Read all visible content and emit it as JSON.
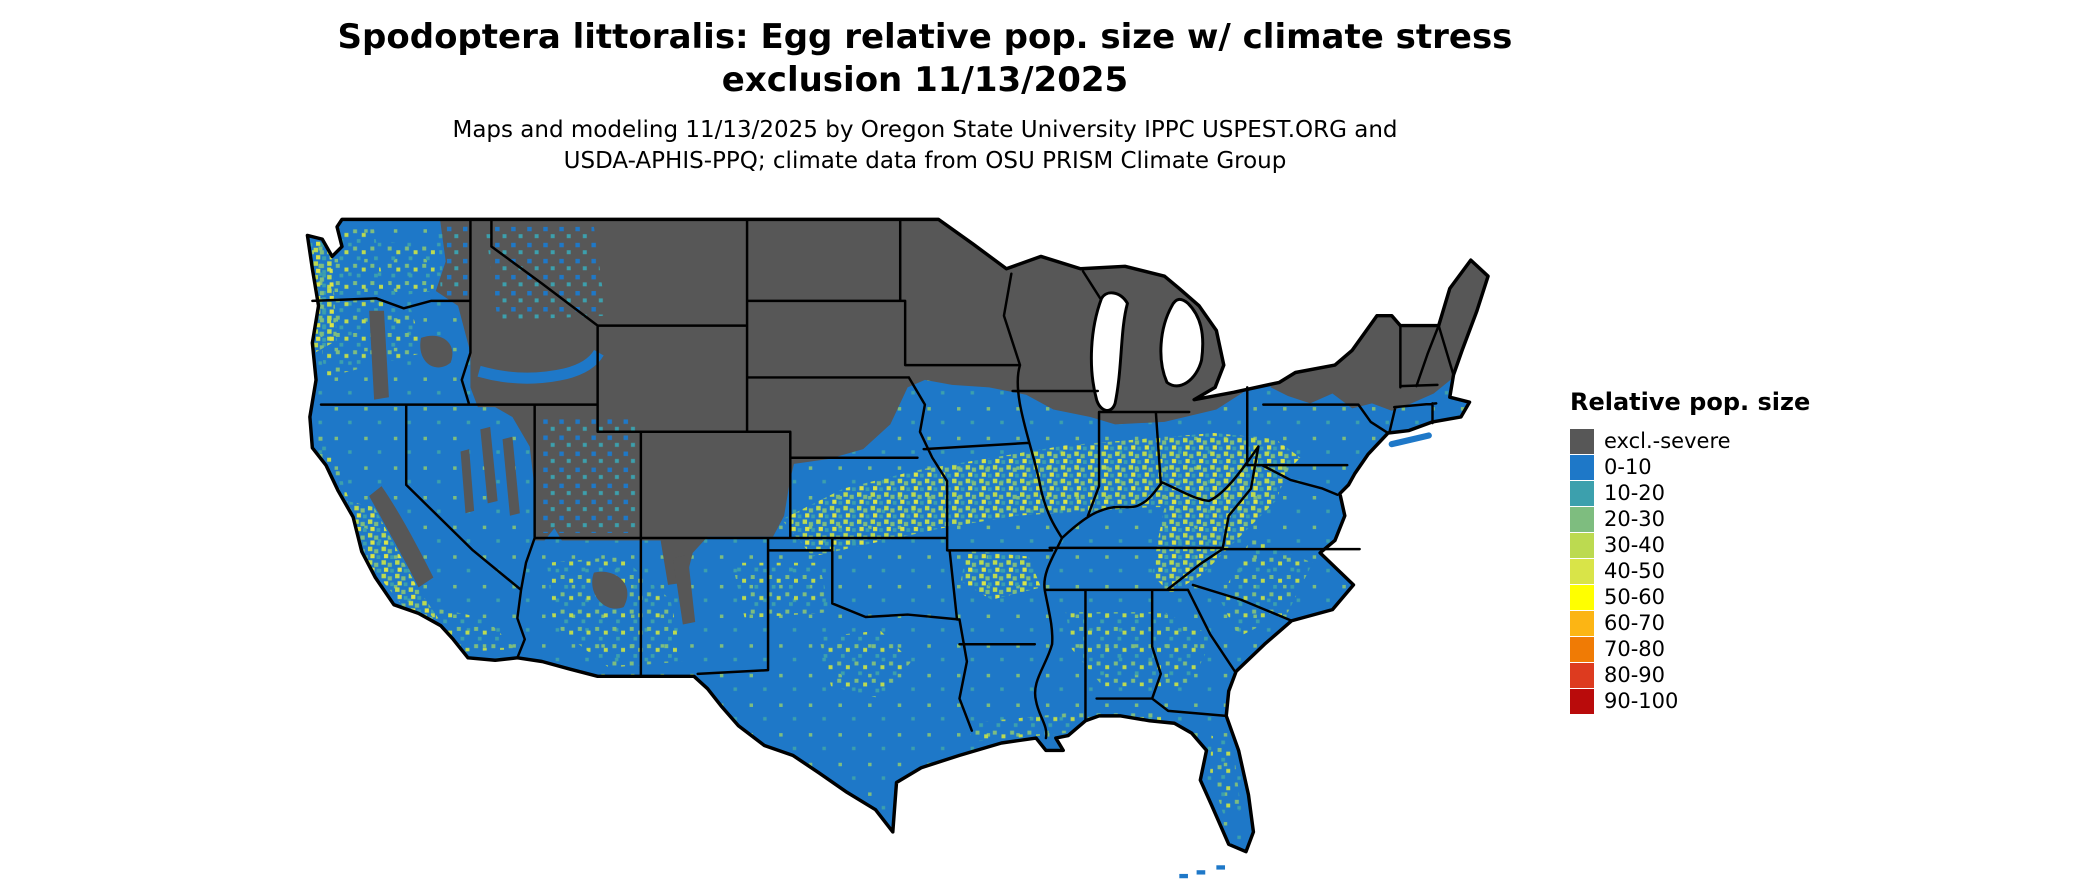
{
  "header": {
    "title_line1": "Spodoptera littoralis: Egg relative pop. size w/ climate stress",
    "title_line2": "exclusion 11/13/2025",
    "subtitle_line1": "Maps and modeling 11/13/2025 by Oregon State University IPPC USPEST.ORG and",
    "subtitle_line2": "USDA-APHIS-PPQ; climate data from OSU PRISM Climate Group"
  },
  "legend": {
    "title": "Relative pop. size",
    "items": [
      {
        "label": "excl.-severe",
        "color": "#575757"
      },
      {
        "label": "0-10",
        "color": "#1e78c8"
      },
      {
        "label": "10-20",
        "color": "#3ca0ad"
      },
      {
        "label": "20-30",
        "color": "#7ebd7f"
      },
      {
        "label": "30-40",
        "color": "#bcda50"
      },
      {
        "label": "40-50",
        "color": "#d9e448"
      },
      {
        "label": "50-60",
        "color": "#ffff00"
      },
      {
        "label": "60-70",
        "color": "#fcb514"
      },
      {
        "label": "70-80",
        "color": "#f07b05"
      },
      {
        "label": "80-90",
        "color": "#dd3b1f"
      },
      {
        "label": "90-100",
        "color": "#b90b0b"
      }
    ]
  },
  "map": {
    "region": "Continental United States",
    "palette": {
      "excluded": "#575757",
      "low": "#1e78c8",
      "teal": "#3ca0ad",
      "green": "#7ebd7f",
      "yellow_green": "#bcda50",
      "yellow2": "#d9e448",
      "border": "#000000",
      "water": "#ffffff"
    }
  }
}
